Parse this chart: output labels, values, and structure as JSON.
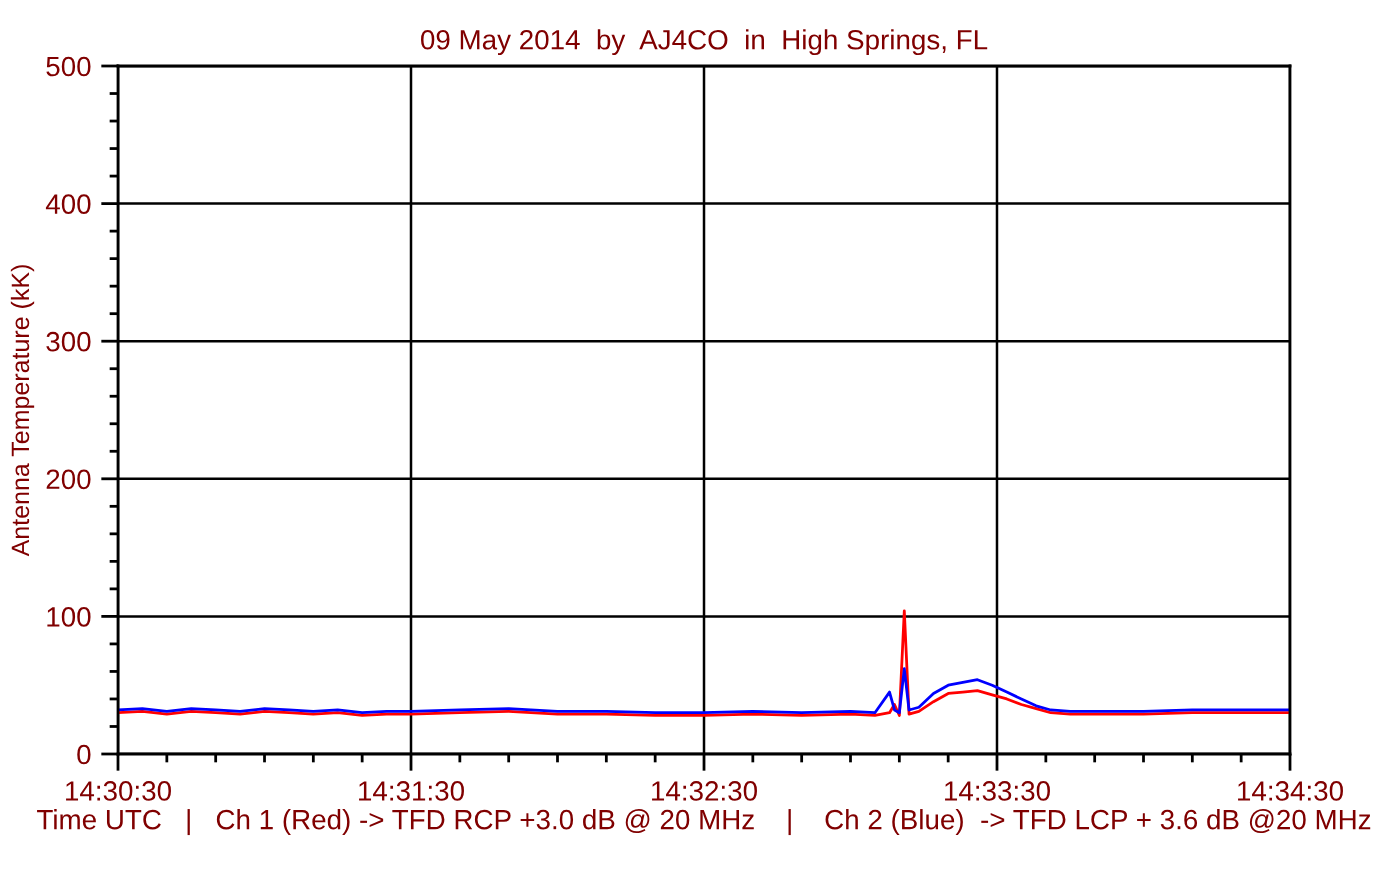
{
  "chart_data": {
    "type": "line",
    "title": "09 May 2014  by  AJ4CO  in  High Springs, FL",
    "xlabel": "Time UTC   |   Ch 1 (Red) -> TFD RCP +3.0 dB @ 20 MHz    |    Ch 2 (Blue)  -> TFD LCP + 3.6 dB @20 MHz",
    "ylabel": "Antenna Temperature (kK)",
    "x": [
      14.508333,
      14.50972,
      14.51111,
      14.5125,
      14.51389,
      14.51528,
      14.51667,
      14.51806,
      14.51944,
      14.52083,
      14.52222,
      14.52361,
      14.525,
      14.52778,
      14.53056,
      14.53333,
      14.53611,
      14.53889,
      14.54167,
      14.54444,
      14.54722,
      14.55,
      14.55139,
      14.55222,
      14.5525,
      14.55278,
      14.55306,
      14.55333,
      14.55389,
      14.55472,
      14.55556,
      14.55639,
      14.55722,
      14.55806,
      14.55889,
      14.55972,
      14.56056,
      14.56139,
      14.5625,
      14.56389,
      14.56667,
      14.56944,
      14.57222,
      14.575
    ],
    "series": [
      {
        "color": "#ff0000",
        "values": [
          30,
          31,
          29,
          31,
          30,
          29,
          31,
          30,
          29,
          30,
          28,
          29,
          29,
          30,
          31,
          29,
          29,
          28,
          28,
          29,
          28,
          29,
          28,
          30,
          36,
          28,
          104,
          29,
          31,
          38,
          44,
          45,
          46,
          43,
          40,
          36,
          33,
          30,
          29,
          29,
          29,
          30,
          30,
          30
        ]
      },
      {
        "color": "#0000ff",
        "values": [
          32,
          33,
          31,
          33,
          32,
          31,
          33,
          32,
          31,
          32,
          30,
          31,
          31,
          32,
          33,
          31,
          31,
          30,
          30,
          31,
          30,
          31,
          30,
          45,
          32,
          30,
          62,
          32,
          34,
          44,
          50,
          52,
          54,
          50,
          45,
          40,
          35,
          32,
          31,
          31,
          31,
          32,
          32,
          32
        ]
      }
    ],
    "xlim": [
      14.508333,
      14.575
    ],
    "xticks": [
      {
        "value": 14.508333,
        "label": "14:30:30"
      },
      {
        "value": 14.511111,
        "label": null
      },
      {
        "value": 14.513889,
        "label": null
      },
      {
        "value": 14.516667,
        "label": null
      },
      {
        "value": 14.519444,
        "label": null
      },
      {
        "value": 14.522222,
        "label": null
      },
      {
        "value": 14.525,
        "label": "14:31:30"
      },
      {
        "value": 14.527778,
        "label": null
      },
      {
        "value": 14.530556,
        "label": null
      },
      {
        "value": 14.533333,
        "label": null
      },
      {
        "value": 14.536111,
        "label": null
      },
      {
        "value": 14.538889,
        "label": null
      },
      {
        "value": 14.541667,
        "label": "14:32:30"
      },
      {
        "value": 14.544444,
        "label": null
      },
      {
        "value": 14.547222,
        "label": null
      },
      {
        "value": 14.55,
        "label": null
      },
      {
        "value": 14.552778,
        "label": null
      },
      {
        "value": 14.555556,
        "label": null
      },
      {
        "value": 14.558333,
        "label": "14:33:30"
      },
      {
        "value": 14.561111,
        "label": null
      },
      {
        "value": 14.563889,
        "label": null
      },
      {
        "value": 14.566667,
        "label": null
      },
      {
        "value": 14.569444,
        "label": null
      },
      {
        "value": 14.572222,
        "label": null
      },
      {
        "value": 14.575,
        "label": "14:34:30"
      }
    ],
    "ylim": [
      0,
      500
    ],
    "yticks": [
      0,
      {
        "value": 20,
        "label": null
      },
      {
        "value": 40,
        "label": null
      },
      {
        "value": 60,
        "label": null
      },
      {
        "value": 80,
        "label": null
      },
      100,
      {
        "value": 120,
        "label": null
      },
      {
        "value": 140,
        "label": null
      },
      {
        "value": 160,
        "label": null
      },
      {
        "value": 180,
        "label": null
      },
      200,
      {
        "value": 220,
        "label": null
      },
      {
        "value": 240,
        "label": null
      },
      {
        "value": 260,
        "label": null
      },
      {
        "value": 280,
        "label": null
      },
      300,
      {
        "value": 320,
        "label": null
      },
      {
        "value": 340,
        "label": null
      },
      {
        "value": 360,
        "label": null
      },
      {
        "value": 380,
        "label": null
      },
      400,
      {
        "value": 420,
        "label": null
      },
      {
        "value": 440,
        "label": null
      },
      {
        "value": 460,
        "label": null
      },
      {
        "value": 480,
        "label": null
      },
      500
    ],
    "grid": true,
    "marker": "none",
    "line_style": "solid"
  }
}
